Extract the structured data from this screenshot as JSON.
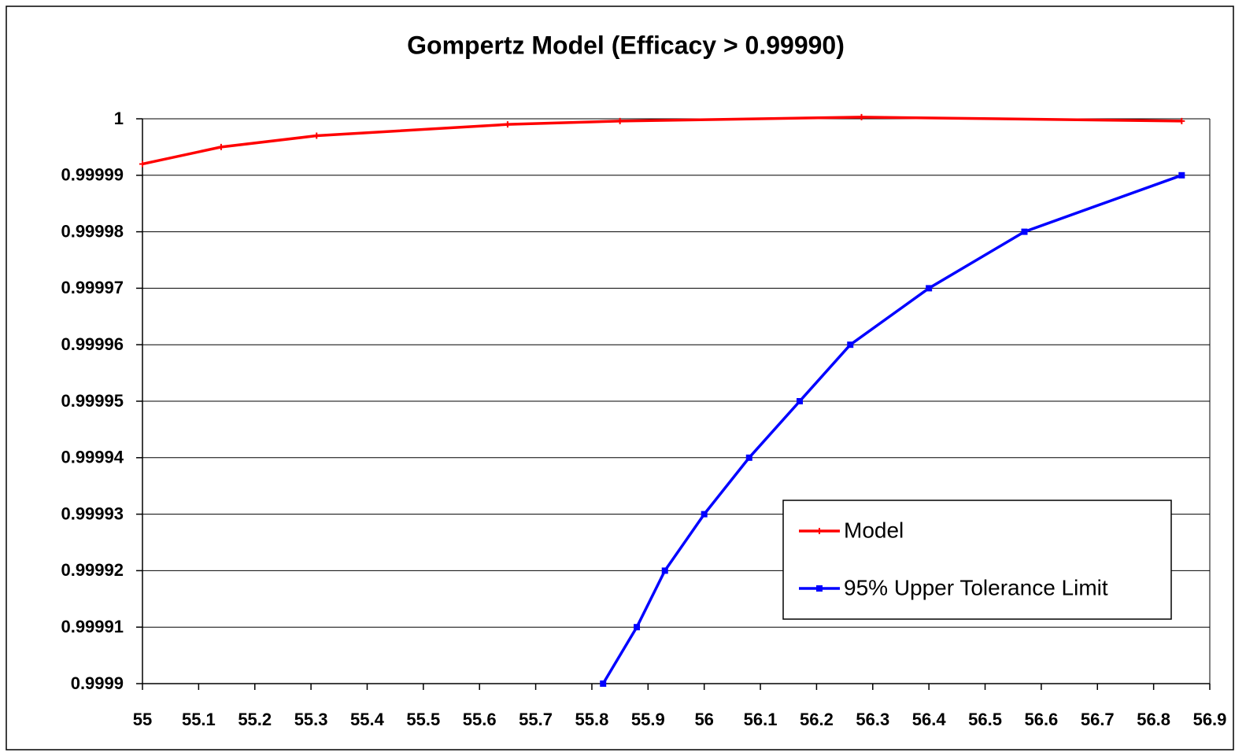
{
  "chart_data": {
    "type": "line",
    "title": "Gompertz Model (Efficacy > 0.99990)",
    "series": [
      {
        "name": "Model",
        "color": "#ff0000",
        "marker": "plus",
        "x": [
          55,
          55.14,
          55.31,
          55.65,
          55.85,
          56.28,
          56.85
        ],
        "values": [
          0.999992,
          0.999995,
          0.999997,
          0.999999,
          0.9999996,
          1.0000003,
          0.9999996
        ]
      },
      {
        "name": "95% Upper Tolerance Limit",
        "color": "#0000ff",
        "marker": "square",
        "x": [
          55.82,
          55.88,
          55.93,
          56.0,
          56.08,
          56.17,
          56.26,
          56.4,
          56.57,
          56.85
        ],
        "values": [
          0.9999,
          0.99991,
          0.99992,
          0.99993,
          0.99994,
          0.99995,
          0.99996,
          0.99997,
          0.99998,
          0.99999
        ]
      }
    ],
    "xlim": [
      55,
      56.9
    ],
    "xticks": [
      55,
      55.1,
      55.2,
      55.3,
      55.4,
      55.5,
      55.6,
      55.7,
      55.8,
      55.9,
      56,
      56.1,
      56.2,
      56.3,
      56.4,
      56.5,
      56.6,
      56.7,
      56.8,
      56.9
    ],
    "ylim": [
      0.9999,
      1
    ],
    "yticks": [
      0.9999,
      0.99991,
      0.99992,
      0.99993,
      0.99994,
      0.99995,
      0.99996,
      0.99997,
      0.99998,
      0.99999,
      1
    ],
    "grid": true,
    "legend": "lower right"
  }
}
